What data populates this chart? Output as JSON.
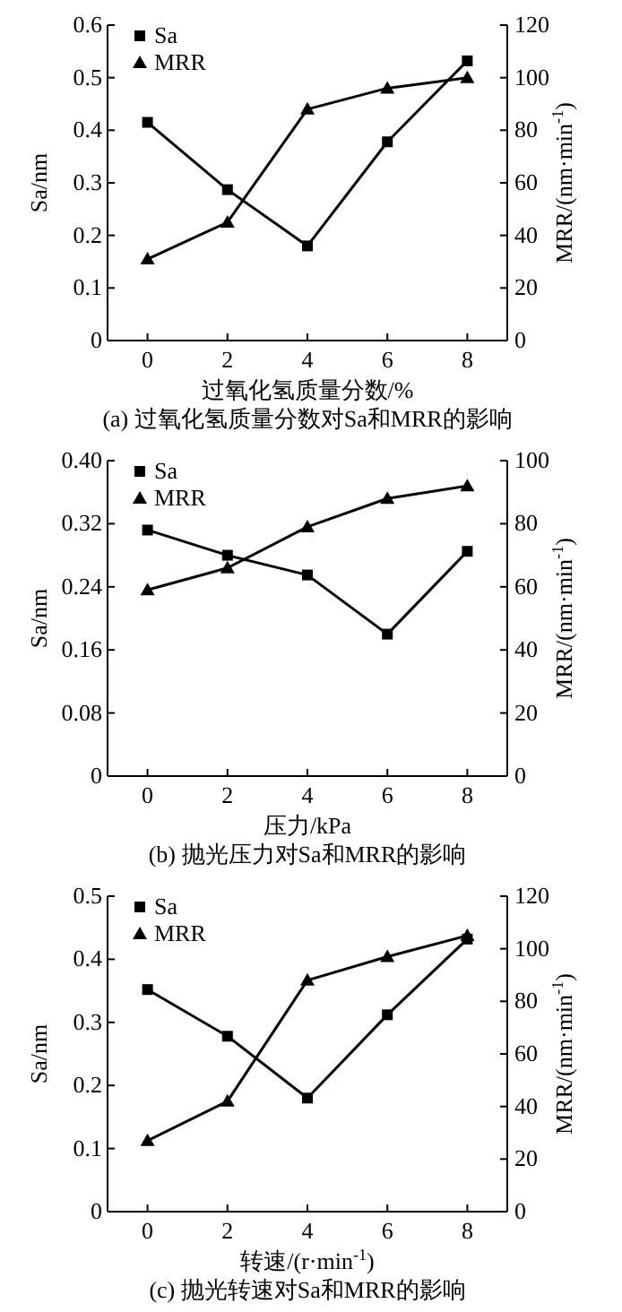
{
  "chart_data": [
    {
      "type": "line",
      "title": "(a) 过氧化氢质量分数对Sa和MRR的影响",
      "xlabel": "过氧化氢质量分数/%",
      "ylabel": "Sa/nm",
      "y2label": "MRR/(nm·min$^{-1}$)",
      "legend": "top left",
      "x": [
        0,
        2,
        4,
        6,
        8
      ],
      "xlim": [
        -1,
        9
      ],
      "xticks": [
        0,
        2,
        4,
        6,
        8
      ],
      "ylim": [
        0,
        0.6
      ],
      "yticks": [
        0,
        0.1,
        0.2,
        0.3,
        0.4,
        0.5,
        0.6
      ],
      "y2lim": [
        0,
        120
      ],
      "y2ticks": [
        0,
        20,
        40,
        60,
        80,
        100,
        120
      ],
      "series": [
        {
          "name": "Sa",
          "color": "#000000",
          "marker": "square",
          "values": [
            0.415,
            0.287,
            0.18,
            0.378,
            0.532
          ]
        },
        {
          "name": "MRR",
          "color": "#000000",
          "marker": "triangle",
          "axis": "y2",
          "values": [
            31,
            45,
            88,
            96,
            100
          ]
        }
      ]
    },
    {
      "type": "line",
      "title": "(b) 抛光压力对Sa和MRR的影响",
      "xlabel": "压力/kPa",
      "ylabel": "Sa/nm",
      "y2label": "MRR/(nm·min$^{-1}$)",
      "legend": "top left",
      "x": [
        0,
        2,
        4,
        6,
        8
      ],
      "xlim": [
        -1,
        9
      ],
      "xticks": [
        0,
        2,
        4,
        6,
        8
      ],
      "ylim": [
        0,
        0.4
      ],
      "yticks": [
        0,
        {
          "value": 0.08,
          "label": "0.08"
        },
        {
          "value": 0.16,
          "label": "0.16"
        },
        {
          "value": 0.24,
          "label": "0.24"
        },
        {
          "value": 0.32,
          "label": "0.32"
        },
        {
          "value": 0.4,
          "label": "0.40"
        }
      ],
      "y2lim": [
        0,
        100
      ],
      "y2ticks": [
        0,
        20,
        40,
        60,
        80,
        100
      ],
      "series": [
        {
          "name": "Sa",
          "color": "#000000",
          "marker": "square",
          "values": [
            0.312,
            0.28,
            0.255,
            0.18,
            0.285
          ]
        },
        {
          "name": "MRR",
          "color": "#000000",
          "marker": "triangle",
          "axis": "y2",
          "values": [
            59,
            66,
            79,
            88,
            92
          ]
        }
      ]
    },
    {
      "type": "line",
      "title": "(c) 抛光转速对Sa和MRR的影响",
      "xlabel": "转速/(r·min$^{-1}$)",
      "ylabel": "Sa/nm",
      "y2label": "MRR/(nm·min$^{-1}$)",
      "legend": "top left",
      "x": [
        0,
        2,
        4,
        6,
        8
      ],
      "xlim": [
        -1,
        9
      ],
      "xticks": [
        0,
        2,
        4,
        6,
        8
      ],
      "ylim": [
        0,
        0.5
      ],
      "yticks": [
        0,
        0.1,
        0.2,
        0.3,
        0.4,
        0.5
      ],
      "y2lim": [
        0,
        120
      ],
      "y2ticks": [
        0,
        20,
        40,
        60,
        80,
        100,
        120
      ],
      "series": [
        {
          "name": "Sa",
          "color": "#000000",
          "marker": "square",
          "values": [
            0.352,
            0.278,
            0.18,
            0.312,
            0.432
          ]
        },
        {
          "name": "MRR",
          "color": "#000000",
          "marker": "triangle",
          "axis": "y2",
          "values": [
            27,
            42,
            88,
            97,
            105
          ]
        }
      ]
    }
  ]
}
